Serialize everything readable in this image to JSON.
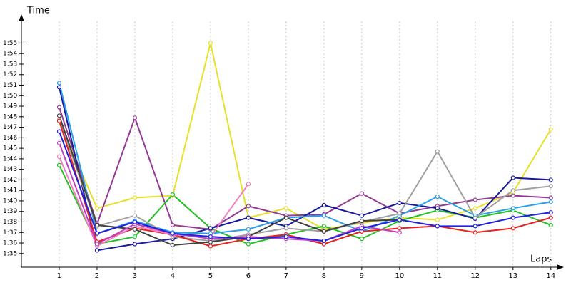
{
  "chart_data": {
    "type": "line",
    "y_label": "Time",
    "x_label": "Laps",
    "x": [
      1,
      2,
      3,
      4,
      5,
      6,
      7,
      8,
      9,
      10,
      11,
      12,
      13,
      14
    ],
    "xlim": [
      0,
      14.25
    ],
    "xticks": [
      1,
      2,
      3,
      4,
      5,
      6,
      7,
      8,
      9,
      10,
      11,
      12,
      13,
      14
    ],
    "ylim": [
      93.7,
      117.4
    ],
    "yticks": [
      {
        "value": 95,
        "label": "1:35"
      },
      {
        "value": 96,
        "label": "1:36"
      },
      {
        "value": 97,
        "label": "1:37"
      },
      {
        "value": 98,
        "label": "1:38"
      },
      {
        "value": 99,
        "label": "1:39"
      },
      {
        "value": 100,
        "label": "1:40"
      },
      {
        "value": 101,
        "label": "1:41"
      },
      {
        "value": 102,
        "label": "1:42"
      },
      {
        "value": 103,
        "label": "1:43"
      },
      {
        "value": 104,
        "label": "1:44"
      },
      {
        "value": 105,
        "label": "1:45"
      },
      {
        "value": 106,
        "label": "1:46"
      },
      {
        "value": 107,
        "label": "1:47"
      },
      {
        "value": 108,
        "label": "1:48"
      },
      {
        "value": 109,
        "label": "1:49"
      },
      {
        "value": 110,
        "label": "1:50"
      },
      {
        "value": 111,
        "label": "1:51"
      },
      {
        "value": 112,
        "label": "1:52"
      },
      {
        "value": 113,
        "label": "1:53"
      },
      {
        "value": 114,
        "label": "1:54"
      },
      {
        "value": 115,
        "label": "1:55"
      }
    ],
    "grid": true,
    "series": [
      {
        "color": "#e6e02a",
        "values": [
          107.6,
          99.3,
          100.3,
          100.5,
          115,
          98.4,
          99.3,
          97.3,
          97.9,
          98.4,
          98.2,
          99.3,
          100.8,
          106.8
        ]
      },
      {
        "color": "#943a94",
        "values": [
          108.9,
          97.8,
          107.9,
          97.7,
          97.3,
          99.5,
          98.6,
          98.7,
          100.7,
          98.8,
          99.5,
          100.1,
          100.5,
          100.3
        ]
      },
      {
        "color": "#22c022",
        "values": [
          103.4,
          95.9,
          96.6,
          100.6,
          97.4,
          95.9,
          96.8,
          97.6,
          96.4,
          98.1,
          99.1,
          98.4,
          99.1,
          97.7
        ]
      },
      {
        "color": "#1a1aa0",
        "values": [
          110.8,
          95.3,
          95.9,
          96.4,
          97.4,
          98.4,
          97.6,
          99.6,
          98.6,
          99.8,
          99.3,
          98.3,
          102.2,
          102.0
        ]
      },
      {
        "color": "#2aa0e8",
        "values": [
          111.2,
          96.9,
          98.1,
          97.0,
          96.9,
          97.3,
          98.4,
          98.6,
          97.1,
          98.6,
          100.4,
          98.6,
          99.3,
          99.9
        ]
      },
      {
        "color": "#a0a0a0",
        "values": [
          107.7,
          97.6,
          98.6,
          96.6,
          96.2,
          96.8,
          97.4,
          97.1,
          98.0,
          98.8,
          104.7,
          98.4,
          101,
          101.4
        ]
      },
      {
        "color": "#e82020",
        "values": [
          107.6,
          96.1,
          97.4,
          96.8,
          95.7,
          96.4,
          96.8,
          95.9,
          97.1,
          97.4,
          97.6,
          97.0,
          97.4,
          98.4
        ]
      },
      {
        "color": "#f080c0",
        "values": [
          104.2,
          95.7,
          97.6,
          96.8,
          96.6,
          101.6,
          null,
          null,
          null,
          null,
          null,
          null,
          null,
          null
        ]
      },
      {
        "color": "#404040",
        "values": [
          108.1,
          97.7,
          97.3,
          95.8,
          96.1,
          96.6,
          98.4,
          97.1,
          98.1,
          98.2,
          null,
          null,
          null,
          null
        ]
      },
      {
        "color": "#c040c0",
        "values": [
          105.5,
          95.9,
          97.8,
          96.9,
          96.4,
          96.6,
          96.4,
          96.2,
          97.6,
          97.0,
          null,
          null,
          null,
          null
        ]
      },
      {
        "color": "#2020e0",
        "values": [
          106.6,
          96.9,
          98.0,
          96.9,
          96.6,
          96.4,
          96.6,
          96.2,
          97.4,
          98.2,
          97.6,
          97.6,
          98.4,
          98.9
        ]
      }
    ]
  }
}
